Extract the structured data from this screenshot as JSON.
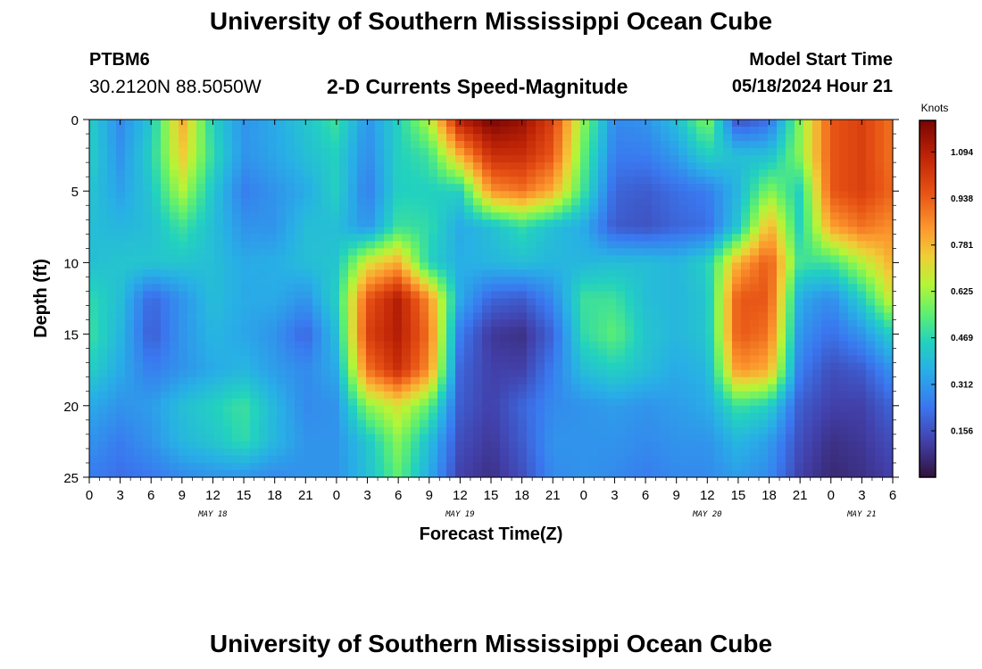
{
  "header": {
    "title": "University of Southern Mississippi Ocean Cube",
    "station": "PTBM6",
    "coords": "30.2120N  88.5050W",
    "subtitle": "2-D Currents Speed-Magnitude",
    "model_start_label": "Model Start Time",
    "model_start_value": "05/18/2024 Hour 21",
    "footer_title": "University of Southern Mississippi Ocean Cube"
  },
  "chart_data": {
    "type": "heatmap",
    "title": "2-D Currents Speed-Magnitude",
    "xlabel": "Forecast Time(Z)",
    "ylabel": "Depth (ft)",
    "x_tick_labels": [
      "0",
      "3",
      "6",
      "9",
      "12",
      "15",
      "18",
      "21",
      "0",
      "3",
      "6",
      "9",
      "12",
      "15",
      "18",
      "21",
      "0",
      "3",
      "6",
      "9",
      "12",
      "15",
      "18",
      "21",
      "0",
      "3",
      "6"
    ],
    "day_labels": [
      {
        "label": "MAY 18",
        "at_tick": 4
      },
      {
        "label": "MAY 19",
        "at_tick": 12
      },
      {
        "label": "MAY 20",
        "at_tick": 20
      },
      {
        "label": "MAY 21",
        "at_tick": 25
      }
    ],
    "xlim": [
      0,
      78
    ],
    "x_units": "hours from May 18 00Z",
    "y_ticks": [
      0,
      5,
      10,
      15,
      20,
      25
    ],
    "ylim": [
      0,
      25
    ],
    "colorbar": {
      "unit": "Knots",
      "ticks": [
        "0.156",
        "0.312",
        "0.469",
        "0.625",
        "0.781",
        "0.938",
        "1.094"
      ],
      "range": [
        0.0,
        1.2
      ]
    },
    "grid": {
      "x_hours": [
        0,
        3,
        6,
        9,
        12,
        15,
        18,
        21,
        24,
        27,
        30,
        33,
        36,
        39,
        42,
        45,
        48,
        51,
        54,
        57,
        60,
        63,
        66,
        69,
        72,
        75,
        78
      ],
      "depth_ft": [
        0,
        2.5,
        5,
        7.5,
        10,
        12.5,
        15,
        17.5,
        20,
        22.5,
        25
      ],
      "speed_knots": [
        [
          0.45,
          0.28,
          0.42,
          0.8,
          0.45,
          0.3,
          0.35,
          0.42,
          0.5,
          0.3,
          0.45,
          0.65,
          1.1,
          1.2,
          1.15,
          1.0,
          0.6,
          0.28,
          0.3,
          0.4,
          0.6,
          0.15,
          0.22,
          0.6,
          0.95,
          1.0,
          0.9
        ],
        [
          0.45,
          0.3,
          0.45,
          0.75,
          0.48,
          0.3,
          0.34,
          0.4,
          0.45,
          0.28,
          0.45,
          0.5,
          0.8,
          1.05,
          1.05,
          0.95,
          0.55,
          0.25,
          0.25,
          0.32,
          0.45,
          0.4,
          0.4,
          0.6,
          0.95,
          1.0,
          0.9
        ],
        [
          0.42,
          0.33,
          0.42,
          0.65,
          0.42,
          0.25,
          0.3,
          0.35,
          0.45,
          0.25,
          0.45,
          0.45,
          0.45,
          0.85,
          0.9,
          0.8,
          0.5,
          0.2,
          0.18,
          0.22,
          0.25,
          0.38,
          0.6,
          0.45,
          0.95,
          1.0,
          0.92
        ],
        [
          0.4,
          0.38,
          0.4,
          0.5,
          0.4,
          0.3,
          0.3,
          0.4,
          0.4,
          0.3,
          0.5,
          0.48,
          0.35,
          0.4,
          0.48,
          0.4,
          0.35,
          0.18,
          0.16,
          0.2,
          0.22,
          0.42,
          0.8,
          0.45,
          0.82,
          0.9,
          0.85
        ],
        [
          0.4,
          0.42,
          0.42,
          0.42,
          0.4,
          0.35,
          0.36,
          0.4,
          0.42,
          0.7,
          0.8,
          0.45,
          0.36,
          0.38,
          0.4,
          0.38,
          0.38,
          0.4,
          0.4,
          0.38,
          0.45,
          0.8,
          0.95,
          0.5,
          0.5,
          0.65,
          0.8
        ],
        [
          0.48,
          0.4,
          0.2,
          0.3,
          0.4,
          0.35,
          0.35,
          0.3,
          0.45,
          0.95,
          1.1,
          0.85,
          0.35,
          0.2,
          0.18,
          0.28,
          0.5,
          0.5,
          0.4,
          0.38,
          0.42,
          0.95,
          0.95,
          0.35,
          0.28,
          0.45,
          0.7
        ],
        [
          0.5,
          0.38,
          0.18,
          0.3,
          0.38,
          0.34,
          0.3,
          0.2,
          0.4,
          1.0,
          1.1,
          0.9,
          0.25,
          0.1,
          0.08,
          0.2,
          0.48,
          0.55,
          0.42,
          0.38,
          0.42,
          0.95,
          0.9,
          0.3,
          0.22,
          0.3,
          0.45
        ],
        [
          0.45,
          0.35,
          0.25,
          0.3,
          0.35,
          0.38,
          0.32,
          0.28,
          0.35,
          0.9,
          1.05,
          0.85,
          0.2,
          0.12,
          0.12,
          0.25,
          0.4,
          0.45,
          0.4,
          0.35,
          0.38,
          0.85,
          0.8,
          0.25,
          0.15,
          0.18,
          0.3
        ],
        [
          0.35,
          0.3,
          0.32,
          0.4,
          0.45,
          0.5,
          0.38,
          0.28,
          0.3,
          0.6,
          0.7,
          0.55,
          0.18,
          0.12,
          0.2,
          0.28,
          0.3,
          0.32,
          0.3,
          0.32,
          0.35,
          0.5,
          0.45,
          0.18,
          0.12,
          0.12,
          0.2
        ],
        [
          0.3,
          0.25,
          0.3,
          0.38,
          0.42,
          0.48,
          0.38,
          0.3,
          0.3,
          0.42,
          0.6,
          0.4,
          0.15,
          0.1,
          0.18,
          0.3,
          0.3,
          0.3,
          0.28,
          0.3,
          0.3,
          0.38,
          0.32,
          0.15,
          0.08,
          0.1,
          0.15
        ],
        [
          0.25,
          0.22,
          0.24,
          0.28,
          0.3,
          0.3,
          0.28,
          0.3,
          0.3,
          0.4,
          0.55,
          0.35,
          0.12,
          0.08,
          0.15,
          0.28,
          0.3,
          0.28,
          0.25,
          0.28,
          0.28,
          0.32,
          0.28,
          0.12,
          0.06,
          0.08,
          0.12
        ]
      ]
    }
  }
}
